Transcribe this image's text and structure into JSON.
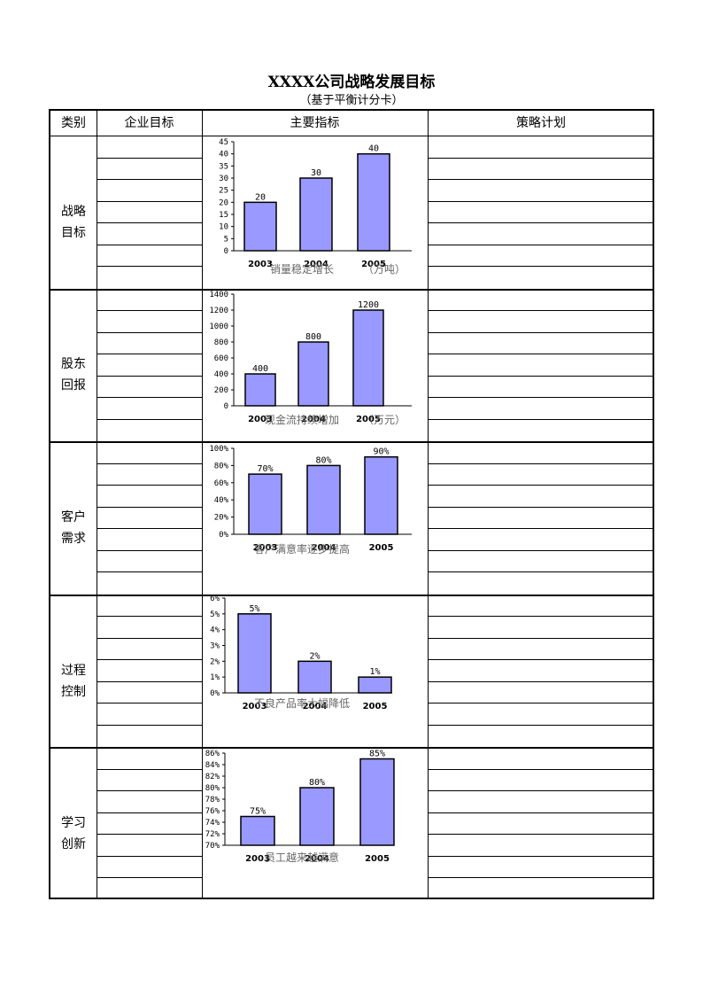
{
  "title": "XXXX公司战略发展目标",
  "subtitle": "（基于平衡计分卡）",
  "headers": {
    "category": "类别",
    "objective": "企业目标",
    "indicator": "主要指标",
    "strategy": "策略计划"
  },
  "colors": {
    "bar": "#9999ff",
    "border": "#000000"
  },
  "sections": [
    {
      "label_line1": "战略",
      "label_line2": "目标",
      "caption": "销量稳定增长",
      "unit": "（万吨）"
    },
    {
      "label_line1": "股东",
      "label_line2": "回报",
      "caption": "现金流持续增加",
      "unit": "（万元）"
    },
    {
      "label_line1": "客户",
      "label_line2": "需求",
      "caption": "客户满意率逐步提高",
      "unit": ""
    },
    {
      "label_line1": "过程",
      "label_line2": "控制",
      "caption": "不良产品率大幅降低",
      "unit": ""
    },
    {
      "label_line1": "学习",
      "label_line2": "创新",
      "caption": "员工越来越满意",
      "unit": ""
    }
  ],
  "chart_data": [
    {
      "type": "bar",
      "title": "销量稳定增长",
      "categories": [
        "2003",
        "2004",
        "2005"
      ],
      "values": [
        20,
        30,
        40
      ],
      "labels": [
        "20",
        "30",
        "40"
      ],
      "ylim": [
        0,
        45
      ],
      "yticks": [
        "0",
        "5",
        "10",
        "15",
        "20",
        "25",
        "30",
        "35",
        "40",
        "45"
      ]
    },
    {
      "type": "bar",
      "title": "现金流持续增加",
      "categories": [
        "2003",
        "2004",
        "2005"
      ],
      "values": [
        400,
        800,
        1200
      ],
      "labels": [
        "400",
        "800",
        "1200"
      ],
      "ylim": [
        0,
        1400
      ],
      "yticks": [
        "0",
        "200",
        "400",
        "600",
        "800",
        "1000",
        "1200",
        "1400"
      ]
    },
    {
      "type": "bar",
      "title": "客户满意率逐步提高",
      "categories": [
        "2003",
        "2004",
        "2005"
      ],
      "values": [
        70,
        80,
        90
      ],
      "labels": [
        "70%",
        "80%",
        "90%"
      ],
      "ylim": [
        0,
        100
      ],
      "yticks": [
        "0%",
        "20%",
        "40%",
        "60%",
        "80%",
        "100%"
      ]
    },
    {
      "type": "bar",
      "title": "不良产品率大幅降低",
      "categories": [
        "2003",
        "2004",
        "2005"
      ],
      "values": [
        5,
        2,
        1
      ],
      "labels": [
        "5%",
        "2%",
        "1%"
      ],
      "ylim": [
        0,
        6
      ],
      "yticks": [
        "0%",
        "1%",
        "2%",
        "3%",
        "4%",
        "5%",
        "6%"
      ]
    },
    {
      "type": "bar",
      "title": "员工越来越满意",
      "categories": [
        "2003",
        "2004",
        "2005"
      ],
      "values": [
        75,
        80,
        85
      ],
      "labels": [
        "75%",
        "80%",
        "85%"
      ],
      "ylim": [
        70,
        86
      ],
      "yticks": [
        "70%",
        "72%",
        "74%",
        "76%",
        "78%",
        "80%",
        "82%",
        "84%",
        "86%"
      ]
    }
  ]
}
